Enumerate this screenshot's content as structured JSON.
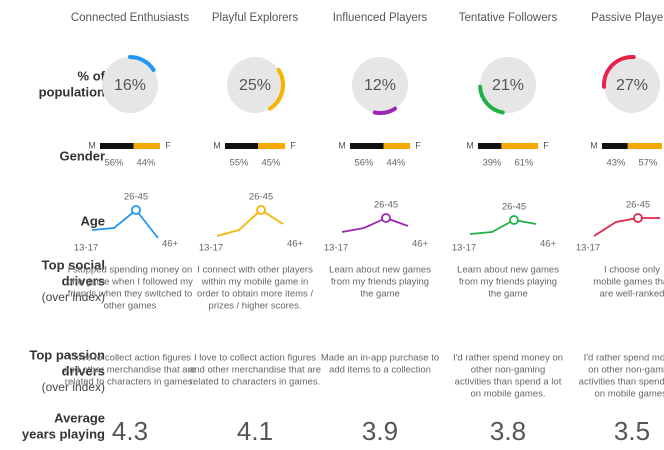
{
  "row_labels": {
    "population": {
      "lines": [
        "% of",
        "population"
      ]
    },
    "gender": {
      "lines": [
        "Gender"
      ]
    },
    "age": {
      "lines": [
        "Age"
      ]
    },
    "social": {
      "lines": [
        "Top social",
        "drivers"
      ],
      "sub": "(over index)"
    },
    "passion": {
      "lines": [
        "Top passion",
        "drivers"
      ],
      "sub": "(over index)"
    },
    "years": {
      "lines": [
        "Average",
        "years playing"
      ]
    }
  },
  "gender_letters": {
    "male": "M",
    "female": "F"
  },
  "age_categories": [
    "13-17",
    null,
    "26-45",
    "46+"
  ],
  "segments": [
    {
      "name": "Connected Enthusiasts",
      "color": "#2196f3",
      "population": 16,
      "population_label": "16%",
      "male": 56,
      "male_label": "56%",
      "female": 44,
      "female_label": "44%",
      "age": [
        25,
        30,
        75,
        5
      ],
      "social": [
        "I stopped spending money on",
        "one game when I followed my",
        "friends when they switched to",
        "other games"
      ],
      "passion": [
        "I love to collect action figures",
        "and other merchandise that are",
        "related to characters in games."
      ],
      "years": "4.3"
    },
    {
      "name": "Playful Explorers",
      "color": "#f5b400",
      "population": 25,
      "population_label": "25%",
      "male": 55,
      "male_label": "55%",
      "female": 45,
      "female_label": "45%",
      "age": [
        10,
        25,
        75,
        40
      ],
      "social": [
        "I connect with other players",
        "within my mobile game in",
        "order to obtain more items /",
        "prizes / higher scores."
      ],
      "passion": [
        "I love to collect action figures",
        "and other merchandise that are",
        "related to characters in games."
      ],
      "years": "4.1"
    },
    {
      "name": "Influenced Players",
      "color": "#9c27b0",
      "population": 12,
      "population_label": "12%",
      "male": 56,
      "male_label": "56%",
      "female": 44,
      "female_label": "44%",
      "age": [
        20,
        30,
        55,
        35
      ],
      "social": [
        "Learn about new games",
        "from my friends playing",
        "the game"
      ],
      "passion": [
        "Made an in-app purchase to",
        "add items to a collection"
      ],
      "years": "3.9"
    },
    {
      "name": "Tentative Followers",
      "color": "#22b04b",
      "population": 21,
      "population_label": "21%",
      "male": 39,
      "male_label": "39%",
      "female": 61,
      "female_label": "61%",
      "age": [
        15,
        20,
        50,
        40
      ],
      "social": [
        "Learn about new games",
        "from my friends playing",
        "the game"
      ],
      "passion": [
        "I'd rather spend money on",
        "other non-gaming",
        "activities than spend a lot",
        "on mobile games."
      ],
      "years": "3.8"
    },
    {
      "name": "Passive Players",
      "color": "#e8234a",
      "population": 27,
      "population_label": "27%",
      "male": 43,
      "male_label": "43%",
      "female": 57,
      "female_label": "57%",
      "age": [
        10,
        45,
        55,
        55
      ],
      "social": [
        "I choose only",
        "mobile games that",
        "are well-ranked"
      ],
      "passion": [
        "I'd rather spend money",
        "on other non-gaming",
        "activities than spend a lot",
        "on mobile games."
      ],
      "years": "3.5"
    }
  ]
}
